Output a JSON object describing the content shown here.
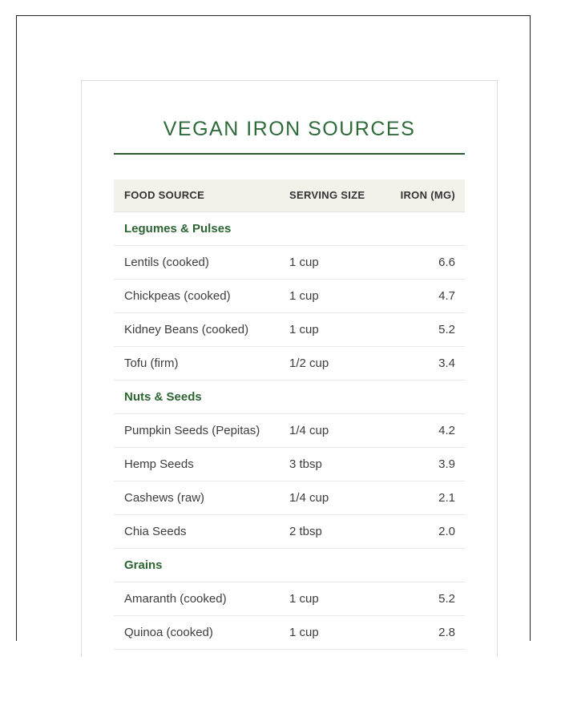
{
  "page": {
    "title": "VEGAN IRON SOURCES"
  },
  "table": {
    "headers": [
      "FOOD SOURCE",
      "SERVING SIZE",
      "IRON (MG)"
    ],
    "sections": [
      {
        "category": "Legumes & Pulses",
        "rows": [
          {
            "food": "Lentils (cooked)",
            "serving": "1 cup",
            "iron": "6.6"
          },
          {
            "food": "Chickpeas (cooked)",
            "serving": "1 cup",
            "iron": "4.7"
          },
          {
            "food": "Kidney Beans (cooked)",
            "serving": "1 cup",
            "iron": "5.2"
          },
          {
            "food": "Tofu (firm)",
            "serving": "1/2 cup",
            "iron": "3.4"
          }
        ]
      },
      {
        "category": "Nuts & Seeds",
        "rows": [
          {
            "food": "Pumpkin Seeds (Pepitas)",
            "serving": "1/4 cup",
            "iron": "4.2"
          },
          {
            "food": "Hemp Seeds",
            "serving": "3 tbsp",
            "iron": "3.9"
          },
          {
            "food": "Cashews (raw)",
            "serving": "1/4 cup",
            "iron": "2.1"
          },
          {
            "food": "Chia Seeds",
            "serving": "2 tbsp",
            "iron": "2.0"
          }
        ]
      },
      {
        "category": "Grains",
        "rows": [
          {
            "food": "Amaranth (cooked)",
            "serving": "1 cup",
            "iron": "5.2"
          },
          {
            "food": "Quinoa (cooked)",
            "serving": "1 cup",
            "iron": "2.8"
          }
        ]
      }
    ]
  },
  "colors": {
    "accent_green": "#2f6b3a",
    "rule_green": "#2e5c2e",
    "category_green": "#2d6434",
    "header_bg": "#f2f1ea",
    "header_text": "#333333",
    "row_text": "#3d3d3d",
    "divider": "#e8e8e8",
    "outer_border": "#222222",
    "card_border": "#dcdcdc"
  }
}
